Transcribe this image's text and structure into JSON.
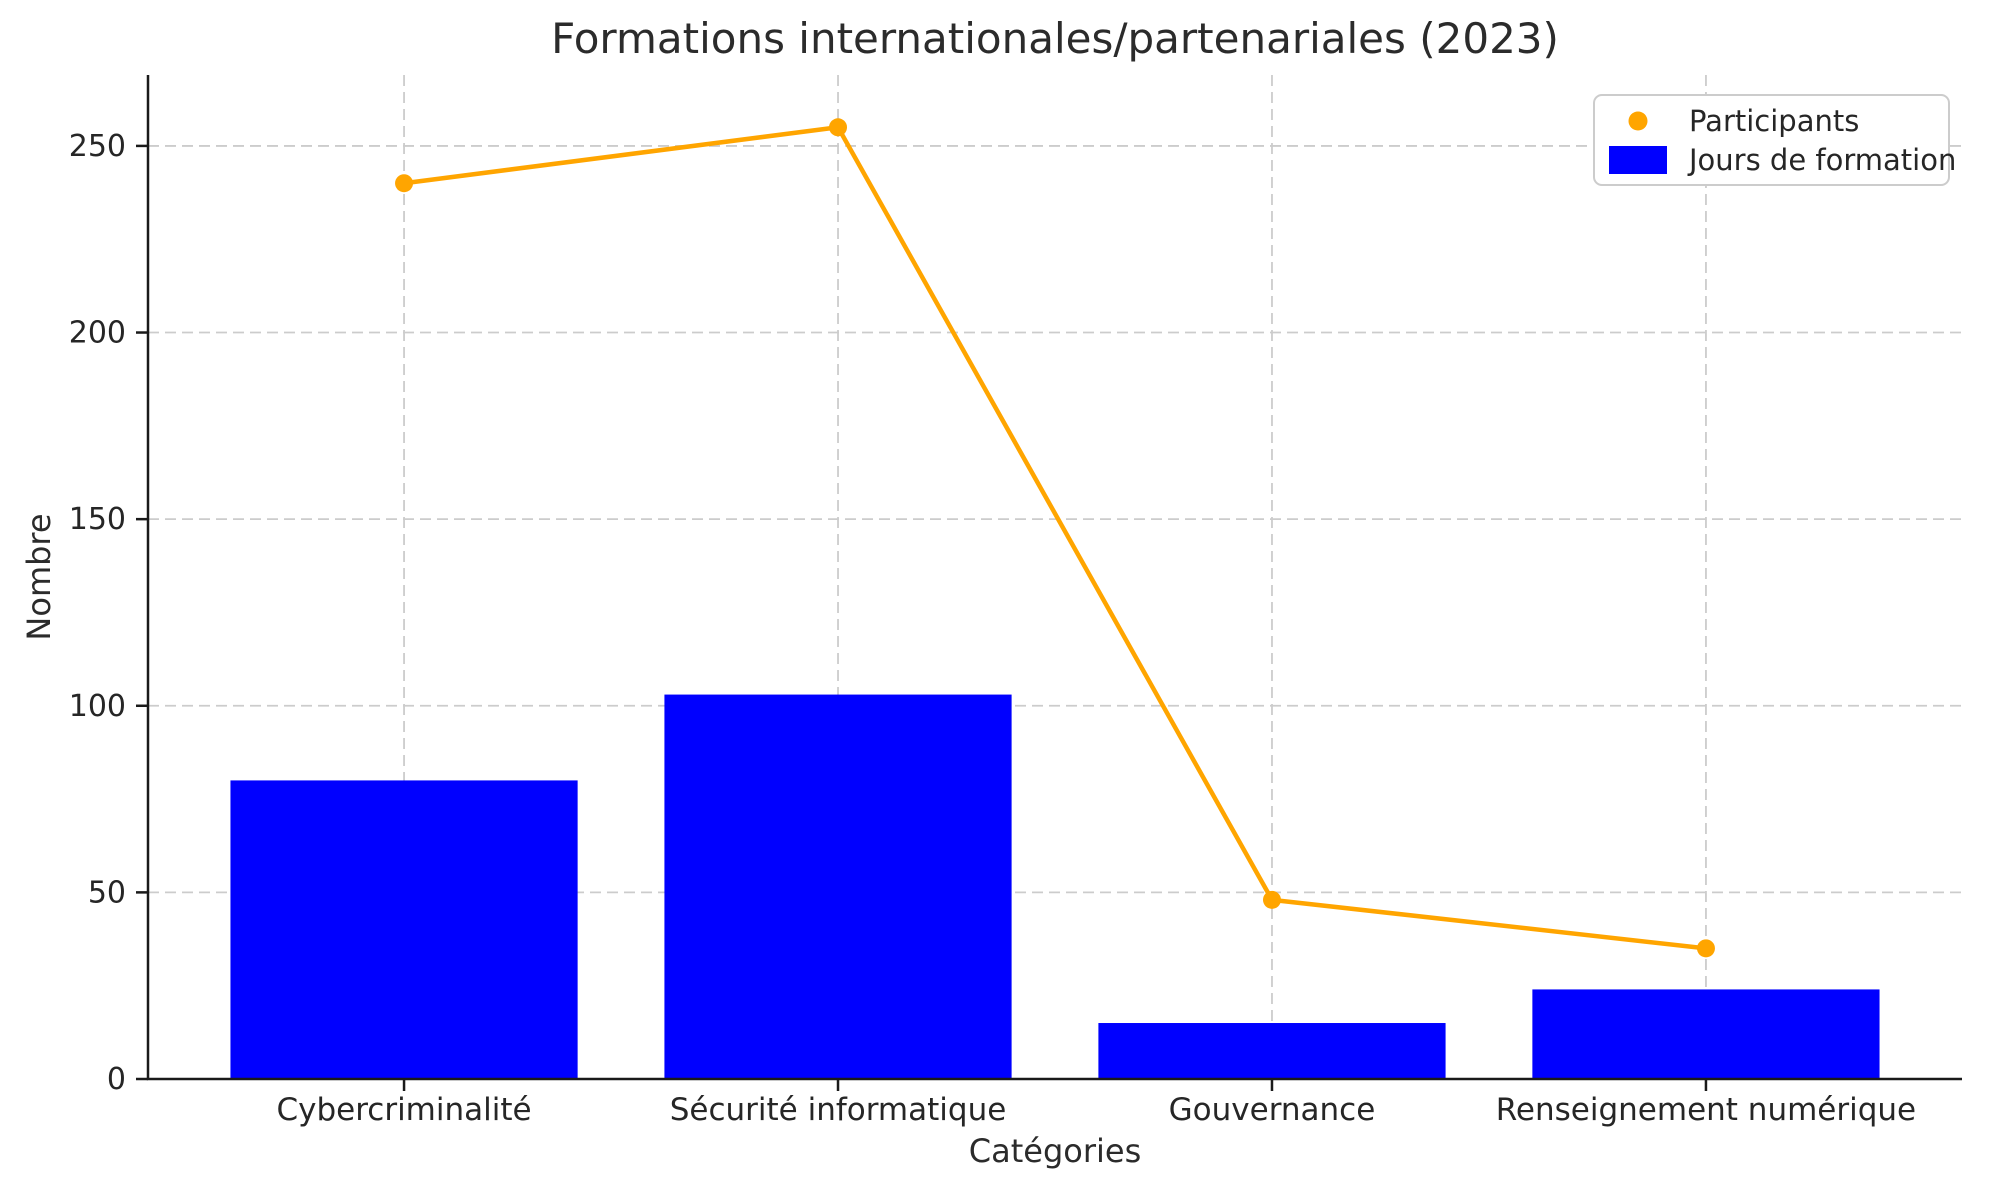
{
  "title": "Formations internationales/partenariales (2023)",
  "axes": {
    "x_label": "Catégories",
    "y_label": "Nombre"
  },
  "legend": {
    "items": [
      {
        "label": "Participants",
        "marker": "line-dot",
        "color": "#FFA500"
      },
      {
        "label": "Jours de formation",
        "marker": "rect",
        "color": "#0000FF"
      }
    ]
  },
  "colors": {
    "bar": "#0000FF",
    "line": "#FFA500",
    "text": "#262626",
    "grid": "#cccccc",
    "spine": "#1a1a1a",
    "background": "#ffffff"
  },
  "chart_data": {
    "type": "bar",
    "title": "Formations internationales/partenariales (2023)",
    "xlabel": "Catégories",
    "ylabel": "Nombre",
    "categories": [
      "Cybercriminalité",
      "Sécurité informatique",
      "Gouvernance",
      "Renseignement numérique"
    ],
    "series": [
      {
        "name": "Participants",
        "type": "line",
        "color": "#FFA500",
        "values": [
          240,
          255,
          48,
          35
        ]
      },
      {
        "name": "Jours de formation",
        "type": "bar",
        "color": "#0000FF",
        "values": [
          80,
          103,
          15,
          24
        ]
      }
    ],
    "y_ticks": [
      0,
      50,
      100,
      150,
      200,
      250
    ],
    "ylim": [
      0,
      269
    ],
    "xlim": [
      -0.59,
      3.59
    ],
    "bar_width": 0.8,
    "grid": true,
    "grid_style": "dashed",
    "legend_position": "upper right"
  }
}
